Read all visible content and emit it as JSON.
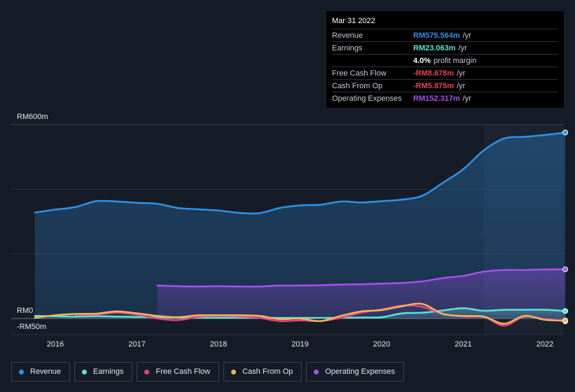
{
  "chart_data": {
    "type": "area",
    "title": "",
    "x_label": "",
    "y_label": "",
    "ylim": [
      -50,
      600
    ],
    "y_ticks": [
      {
        "value": 600,
        "label": "RM600m"
      },
      {
        "value": 0,
        "label": "RM0"
      },
      {
        "value": -50,
        "label": "-RM50m"
      }
    ],
    "x_ticks": [
      {
        "value": 2016,
        "label": "2016"
      },
      {
        "value": 2017,
        "label": "2017"
      },
      {
        "value": 2018,
        "label": "2018"
      },
      {
        "value": 2019,
        "label": "2019"
      },
      {
        "value": 2020,
        "label": "2020"
      },
      {
        "value": 2021,
        "label": "2021"
      },
      {
        "value": 2022,
        "label": "2022"
      }
    ],
    "xlim": [
      2015.6,
      2022.35
    ],
    "highlight_from": 2021.25,
    "series": [
      {
        "name": "Revenue",
        "color": "#2e93e8",
        "fill": true,
        "x": [
          2015.75,
          2016.0,
          2016.25,
          2016.5,
          2016.75,
          2017.0,
          2017.25,
          2017.5,
          2017.75,
          2018.0,
          2018.25,
          2018.5,
          2018.75,
          2019.0,
          2019.25,
          2019.5,
          2019.75,
          2020.0,
          2020.25,
          2020.5,
          2020.75,
          2021.0,
          2021.25,
          2021.5,
          2021.75,
          2022.0,
          2022.25
        ],
        "values": [
          328,
          337,
          345,
          363,
          362,
          358,
          355,
          342,
          338,
          334,
          327,
          326,
          342,
          350,
          352,
          362,
          359,
          363,
          368,
          380,
          420,
          462,
          520,
          557,
          562,
          568,
          575.6
        ]
      },
      {
        "name": "Operating Expenses",
        "color": "#a94ff2",
        "fill": true,
        "x": [
          2017.25,
          2017.5,
          2017.75,
          2018.0,
          2018.25,
          2018.5,
          2018.75,
          2019.0,
          2019.25,
          2019.5,
          2019.75,
          2020.0,
          2020.25,
          2020.5,
          2020.75,
          2021.0,
          2021.25,
          2021.5,
          2021.75,
          2022.0,
          2022.25
        ],
        "values": [
          102,
          100,
          99,
          100,
          99,
          99,
          102,
          102,
          103,
          105,
          106,
          108,
          110,
          115,
          125,
          132,
          145,
          150,
          150,
          152,
          152.3
        ]
      },
      {
        "name": "Earnings",
        "color": "#5fe3d2",
        "fill": true,
        "x": [
          2015.75,
          2016.0,
          2016.25,
          2016.5,
          2016.75,
          2017.0,
          2017.25,
          2017.5,
          2017.75,
          2018.0,
          2018.25,
          2018.5,
          2018.75,
          2019.0,
          2019.25,
          2019.5,
          2019.75,
          2020.0,
          2020.25,
          2020.5,
          2020.75,
          2021.0,
          2021.25,
          2021.5,
          2021.75,
          2022.0,
          2022.25
        ],
        "values": [
          8,
          7,
          6,
          7,
          6,
          5,
          4,
          3,
          2,
          2,
          2,
          2,
          2,
          2,
          2,
          2,
          3,
          4,
          16,
          18,
          25,
          32,
          24,
          27,
          27,
          27,
          23.1
        ]
      },
      {
        "name": "Free Cash Flow",
        "color": "#e5457d",
        "fill": false,
        "x": [
          2016.25,
          2016.5,
          2016.75,
          2017.0,
          2017.25,
          2017.5,
          2017.75,
          2018.0,
          2018.25,
          2018.5,
          2018.75,
          2019.0,
          2019.25,
          2019.5,
          2019.75,
          2020.0,
          2020.25,
          2020.5,
          2020.75,
          2021.0,
          2021.25,
          2021.5,
          2021.75,
          2022.0,
          2022.25
        ],
        "values": [
          12,
          12,
          18,
          12,
          0,
          -5,
          5,
          8,
          6,
          2,
          -8,
          -6,
          -8,
          2,
          18,
          28,
          40,
          36,
          14,
          6,
          5,
          -22,
          6,
          -2,
          -8.7
        ]
      },
      {
        "name": "Cash From Op",
        "color": "#f3b460",
        "fill": false,
        "x": [
          2015.75,
          2016.0,
          2016.25,
          2016.5,
          2016.75,
          2017.0,
          2017.25,
          2017.5,
          2017.75,
          2018.0,
          2018.25,
          2018.5,
          2018.75,
          2019.0,
          2019.25,
          2019.5,
          2019.75,
          2020.0,
          2020.25,
          2020.5,
          2020.75,
          2021.0,
          2021.25,
          2021.5,
          2021.75,
          2022.0,
          2022.25
        ],
        "values": [
          2,
          10,
          14,
          15,
          22,
          16,
          8,
          4,
          10,
          10,
          10,
          8,
          -2,
          0,
          -8,
          8,
          22,
          26,
          38,
          45,
          14,
          8,
          6,
          -16,
          8,
          -4,
          -5.9
        ]
      }
    ]
  },
  "tooltip": {
    "date": "Mar 31 2022",
    "rows": [
      {
        "label": "Revenue",
        "value": "RM575.564m",
        "unit": "/yr",
        "color": "#2e93e8"
      },
      {
        "label": "Earnings",
        "value": "RM23.063m",
        "unit": "/yr",
        "color": "#5fe3d2"
      },
      {
        "label": "",
        "value": "4.0%",
        "unit": "profit margin",
        "color": "#ffffff"
      },
      {
        "label": "Free Cash Flow",
        "value": "-RM8.678m",
        "unit": "/yr",
        "color": "#e5454f"
      },
      {
        "label": "Cash From Op",
        "value": "-RM5.875m",
        "unit": "/yr",
        "color": "#e5454f"
      },
      {
        "label": "Operating Expenses",
        "value": "RM152.317m",
        "unit": "/yr",
        "color": "#a94ff2"
      }
    ]
  },
  "legend": [
    {
      "label": "Revenue",
      "color": "#2e93e8"
    },
    {
      "label": "Earnings",
      "color": "#5fe3d2"
    },
    {
      "label": "Free Cash Flow",
      "color": "#e5457d"
    },
    {
      "label": "Cash From Op",
      "color": "#f3b460"
    },
    {
      "label": "Operating Expenses",
      "color": "#a94ff2"
    }
  ]
}
